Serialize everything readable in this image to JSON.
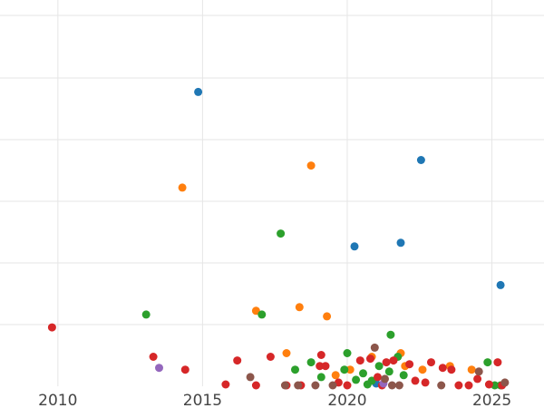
{
  "chart_data": {
    "type": "scatter",
    "title": "",
    "xlabel": "",
    "ylabel": "",
    "x_ticks": [
      "2010",
      "2015",
      "2020",
      "2025"
    ],
    "xlim": [
      2008.0,
      2026.8
    ],
    "ylim": [
      0,
      21
    ],
    "grid": true,
    "legend": "none",
    "colors": {
      "blue": "#1f77b4",
      "orange": "#ff7f0e",
      "green": "#2ca02c",
      "red": "#d62728",
      "purple": "#9467bd",
      "brown": "#8c564b"
    },
    "points": [
      {
        "x": 2014.85,
        "y": 16.0,
        "c": "blue"
      },
      {
        "x": 2022.55,
        "y": 12.3,
        "c": "blue"
      },
      {
        "x": 2020.25,
        "y": 7.6,
        "c": "blue"
      },
      {
        "x": 2021.85,
        "y": 7.8,
        "c": "blue"
      },
      {
        "x": 2025.3,
        "y": 5.5,
        "c": "blue"
      },
      {
        "x": 2021.0,
        "y": 0.15,
        "c": "blue"
      },
      {
        "x": 2018.75,
        "y": 12.0,
        "c": "orange"
      },
      {
        "x": 2014.3,
        "y": 10.8,
        "c": "orange"
      },
      {
        "x": 2016.85,
        "y": 4.1,
        "c": "orange"
      },
      {
        "x": 2018.35,
        "y": 4.3,
        "c": "orange"
      },
      {
        "x": 2019.3,
        "y": 3.8,
        "c": "orange"
      },
      {
        "x": 2017.9,
        "y": 1.8,
        "c": "orange"
      },
      {
        "x": 2019.6,
        "y": 0.6,
        "c": "orange"
      },
      {
        "x": 2020.1,
        "y": 0.9,
        "c": "orange"
      },
      {
        "x": 2021.85,
        "y": 1.8,
        "c": "orange"
      },
      {
        "x": 2022.0,
        "y": 1.1,
        "c": "orange"
      },
      {
        "x": 2022.6,
        "y": 0.9,
        "c": "orange"
      },
      {
        "x": 2023.55,
        "y": 1.1,
        "c": "orange"
      },
      {
        "x": 2024.3,
        "y": 0.9,
        "c": "orange"
      },
      {
        "x": 2020.85,
        "y": 1.6,
        "c": "orange"
      },
      {
        "x": 2017.7,
        "y": 8.3,
        "c": "green"
      },
      {
        "x": 2013.05,
        "y": 3.9,
        "c": "green"
      },
      {
        "x": 2017.05,
        "y": 3.9,
        "c": "green"
      },
      {
        "x": 2021.5,
        "y": 2.8,
        "c": "green"
      },
      {
        "x": 2018.75,
        "y": 1.3,
        "c": "green"
      },
      {
        "x": 2018.2,
        "y": 0.9,
        "c": "green"
      },
      {
        "x": 2019.1,
        "y": 0.5,
        "c": "green"
      },
      {
        "x": 2020.0,
        "y": 1.8,
        "c": "green"
      },
      {
        "x": 2019.9,
        "y": 0.9,
        "c": "green"
      },
      {
        "x": 2020.3,
        "y": 0.35,
        "c": "green"
      },
      {
        "x": 2020.55,
        "y": 0.7,
        "c": "green"
      },
      {
        "x": 2020.85,
        "y": 0.3,
        "c": "green"
      },
      {
        "x": 2021.1,
        "y": 1.1,
        "c": "green"
      },
      {
        "x": 2021.45,
        "y": 0.8,
        "c": "green"
      },
      {
        "x": 2021.75,
        "y": 1.6,
        "c": "green"
      },
      {
        "x": 2021.95,
        "y": 0.6,
        "c": "green"
      },
      {
        "x": 2020.7,
        "y": 0.1,
        "c": "green"
      },
      {
        "x": 2024.85,
        "y": 1.3,
        "c": "green"
      },
      {
        "x": 2025.1,
        "y": 0.05,
        "c": "green"
      },
      {
        "x": 2025.3,
        "y": 0.05,
        "c": "green"
      },
      {
        "x": 2009.8,
        "y": 3.2,
        "c": "red"
      },
      {
        "x": 2013.3,
        "y": 1.6,
        "c": "red"
      },
      {
        "x": 2014.4,
        "y": 0.9,
        "c": "red"
      },
      {
        "x": 2015.8,
        "y": 0.1,
        "c": "red"
      },
      {
        "x": 2016.2,
        "y": 1.4,
        "c": "red"
      },
      {
        "x": 2016.85,
        "y": 0.05,
        "c": "red"
      },
      {
        "x": 2017.35,
        "y": 1.6,
        "c": "red"
      },
      {
        "x": 2017.9,
        "y": 0.05,
        "c": "red"
      },
      {
        "x": 2018.4,
        "y": 0.05,
        "c": "red"
      },
      {
        "x": 2019.05,
        "y": 1.1,
        "c": "red"
      },
      {
        "x": 2019.1,
        "y": 1.7,
        "c": "red"
      },
      {
        "x": 2019.25,
        "y": 1.1,
        "c": "red"
      },
      {
        "x": 2019.7,
        "y": 0.2,
        "c": "red"
      },
      {
        "x": 2020.45,
        "y": 1.4,
        "c": "red"
      },
      {
        "x": 2020.8,
        "y": 1.5,
        "c": "red"
      },
      {
        "x": 2021.05,
        "y": 0.5,
        "c": "red"
      },
      {
        "x": 2021.35,
        "y": 1.3,
        "c": "red"
      },
      {
        "x": 2021.6,
        "y": 1.4,
        "c": "red"
      },
      {
        "x": 2022.15,
        "y": 1.2,
        "c": "red"
      },
      {
        "x": 2022.35,
        "y": 0.3,
        "c": "red"
      },
      {
        "x": 2022.7,
        "y": 0.2,
        "c": "red"
      },
      {
        "x": 2022.9,
        "y": 1.3,
        "c": "red"
      },
      {
        "x": 2023.3,
        "y": 1.0,
        "c": "red"
      },
      {
        "x": 2023.6,
        "y": 0.9,
        "c": "red"
      },
      {
        "x": 2023.85,
        "y": 0.05,
        "c": "red"
      },
      {
        "x": 2024.2,
        "y": 0.05,
        "c": "red"
      },
      {
        "x": 2024.5,
        "y": 0.4,
        "c": "red"
      },
      {
        "x": 2024.9,
        "y": 0.1,
        "c": "red"
      },
      {
        "x": 2025.2,
        "y": 1.3,
        "c": "red"
      },
      {
        "x": 2025.35,
        "y": 0.05,
        "c": "red"
      },
      {
        "x": 2020.0,
        "y": 0.05,
        "c": "red"
      },
      {
        "x": 2021.2,
        "y": 0.05,
        "c": "red"
      },
      {
        "x": 2013.5,
        "y": 1.0,
        "c": "purple"
      },
      {
        "x": 2021.25,
        "y": 0.15,
        "c": "purple"
      },
      {
        "x": 2016.65,
        "y": 0.5,
        "c": "brown"
      },
      {
        "x": 2017.85,
        "y": 0.05,
        "c": "brown"
      },
      {
        "x": 2018.3,
        "y": 0.05,
        "c": "brown"
      },
      {
        "x": 2018.9,
        "y": 0.05,
        "c": "brown"
      },
      {
        "x": 2019.5,
        "y": 0.05,
        "c": "brown"
      },
      {
        "x": 2020.95,
        "y": 2.1,
        "c": "brown"
      },
      {
        "x": 2021.3,
        "y": 0.4,
        "c": "brown"
      },
      {
        "x": 2021.55,
        "y": 0.05,
        "c": "brown"
      },
      {
        "x": 2021.8,
        "y": 0.05,
        "c": "brown"
      },
      {
        "x": 2023.25,
        "y": 0.05,
        "c": "brown"
      },
      {
        "x": 2024.55,
        "y": 0.8,
        "c": "brown"
      },
      {
        "x": 2025.45,
        "y": 0.2,
        "c": "brown"
      }
    ]
  }
}
